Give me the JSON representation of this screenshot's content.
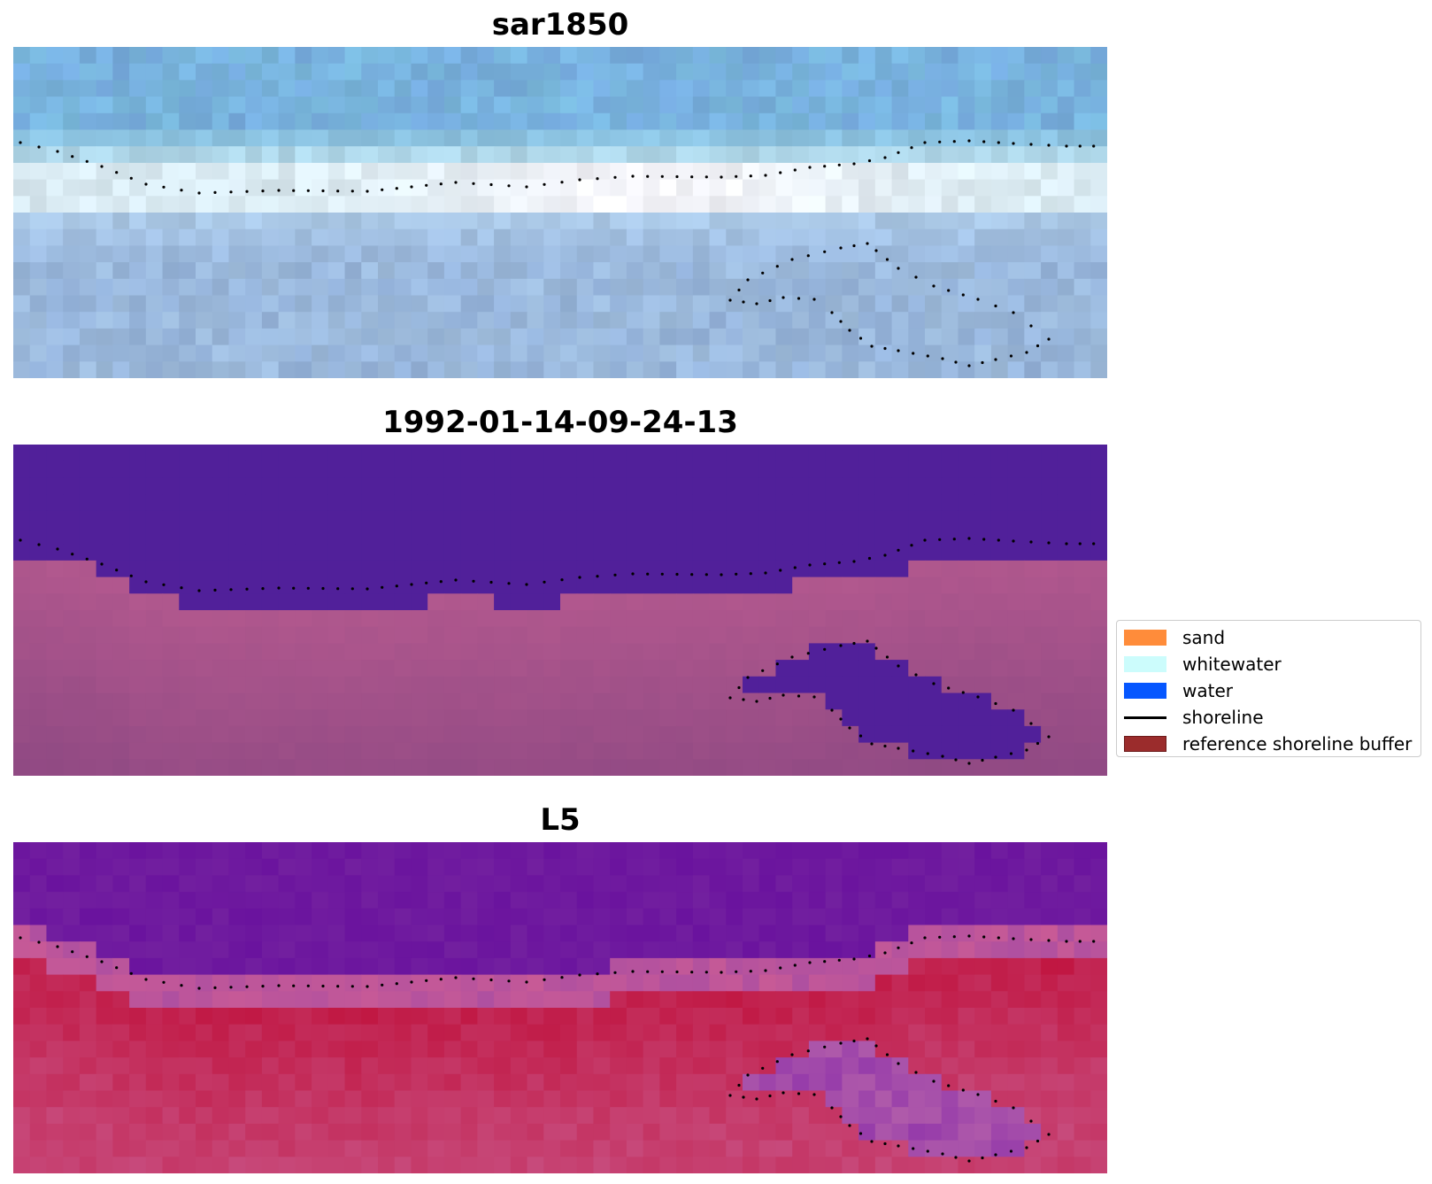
{
  "panels": [
    {
      "title": "sar1850",
      "style": "sar"
    },
    {
      "title": "1992-01-14-09-24-13",
      "style": "class"
    },
    {
      "title": "L5",
      "style": "index"
    }
  ],
  "legend": {
    "items": [
      {
        "label": "sand",
        "color": "#ff8c3a",
        "kind": "patch"
      },
      {
        "label": "whitewater",
        "color": "#ccfcfc",
        "kind": "patch"
      },
      {
        "label": "water",
        "color": "#0657ff",
        "kind": "patch"
      },
      {
        "label": "shoreline",
        "color": "#000000",
        "kind": "line"
      },
      {
        "label": "reference shoreline buffer",
        "color": "#9b2c2c",
        "kind": "patch",
        "edge": "#6b1a1a"
      }
    ]
  },
  "colors": {
    "class_water": "#51209a",
    "class_land": "#b2588e",
    "index_low": "#6a139e",
    "index_high": "#c0133e"
  }
}
